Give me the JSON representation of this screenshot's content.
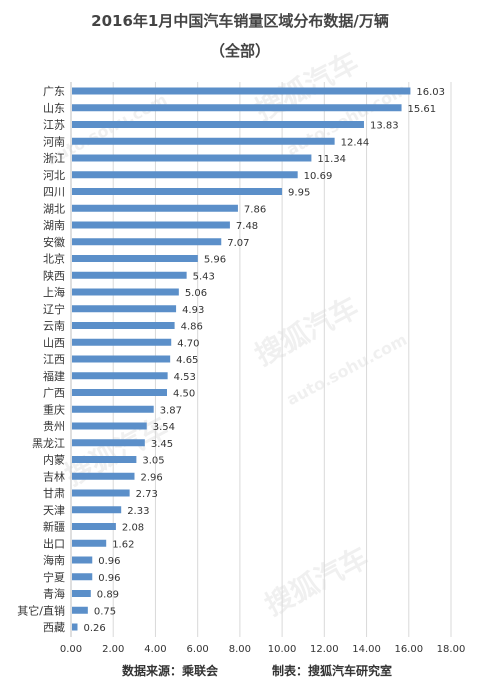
{
  "header": {
    "title": "2016年1月中国汽车销量区域分布数据/万辆",
    "subtitle": "（全部）"
  },
  "footer": {
    "source": "数据来源：乘联会",
    "producer": "制表：搜狐汽车研究室"
  },
  "watermark": {
    "brand": "搜狐汽车",
    "url": "auto.sohu.com"
  },
  "colors": {
    "bar": "#5b8fc9",
    "grid": "#d9d9d9",
    "text": "#333333"
  },
  "chart_data": {
    "type": "bar",
    "orientation": "horizontal",
    "title": "2016年1月中国汽车销量区域分布数据/万辆",
    "subtitle": "（全部）",
    "categories": [
      "广东",
      "山东",
      "江苏",
      "河南",
      "浙江",
      "河北",
      "四川",
      "湖北",
      "湖南",
      "安徽",
      "北京",
      "陕西",
      "上海",
      "辽宁",
      "云南",
      "山西",
      "江西",
      "福建",
      "广西",
      "重庆",
      "贵州",
      "黑龙江",
      "内蒙",
      "吉林",
      "甘肃",
      "天津",
      "新疆",
      "出口",
      "海南",
      "宁夏",
      "青海",
      "其它/直销",
      "西藏"
    ],
    "values": [
      16.03,
      15.61,
      13.83,
      12.44,
      11.34,
      10.69,
      9.95,
      7.86,
      7.48,
      7.07,
      5.96,
      5.43,
      5.06,
      4.93,
      4.86,
      4.7,
      4.65,
      4.53,
      4.5,
      3.87,
      3.54,
      3.45,
      3.05,
      2.96,
      2.73,
      2.33,
      2.08,
      1.62,
      0.96,
      0.96,
      0.89,
      0.75,
      0.26
    ],
    "value_labels": [
      "16.03",
      "15.61",
      "13.83",
      "12.44",
      "11.34",
      "10.69",
      "9.95",
      "7.86",
      "7.48",
      "7.07",
      "5.96",
      "5.43",
      "5.06",
      "4.93",
      "4.86",
      "4.70",
      "4.65",
      "4.53",
      "4.50",
      "3.87",
      "3.54",
      "3.45",
      "3.05",
      "2.96",
      "2.73",
      "2.33",
      "2.08",
      "1.62",
      "0.96",
      "0.96",
      "0.89",
      "0.75",
      "0.26"
    ],
    "xlim": [
      0,
      18
    ],
    "xticks": [
      "0.00",
      "2.00",
      "4.00",
      "6.00",
      "8.00",
      "10.00",
      "12.00",
      "14.00",
      "16.00",
      "18.00"
    ],
    "grid": "vertical",
    "legend": "none"
  }
}
